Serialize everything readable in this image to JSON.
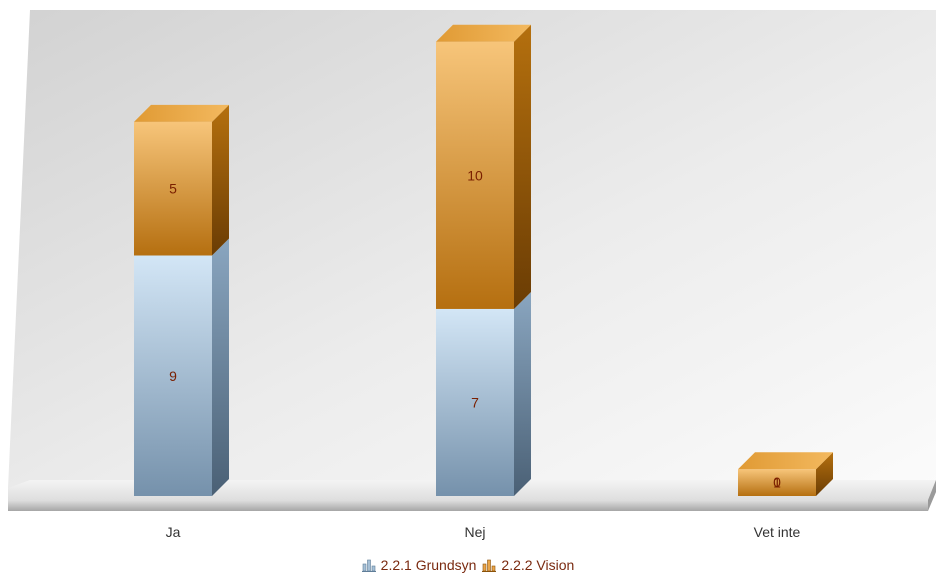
{
  "chart_data": {
    "type": "bar",
    "stacked": true,
    "three_d": true,
    "categories": [
      "Ja",
      "Nej",
      "Vet inte"
    ],
    "series": [
      {
        "name": "2.2.1 Grundsyn",
        "values": [
          9,
          7,
          0
        ],
        "color": "#9fbad1"
      },
      {
        "name": "2.2.2 Vision",
        "values": [
          5,
          10,
          1
        ],
        "color": "#e0962e"
      }
    ],
    "title": "",
    "xlabel": "",
    "ylabel": "",
    "ylim": [
      0,
      18
    ],
    "grid": false,
    "legend_position": "bottom-center"
  }
}
